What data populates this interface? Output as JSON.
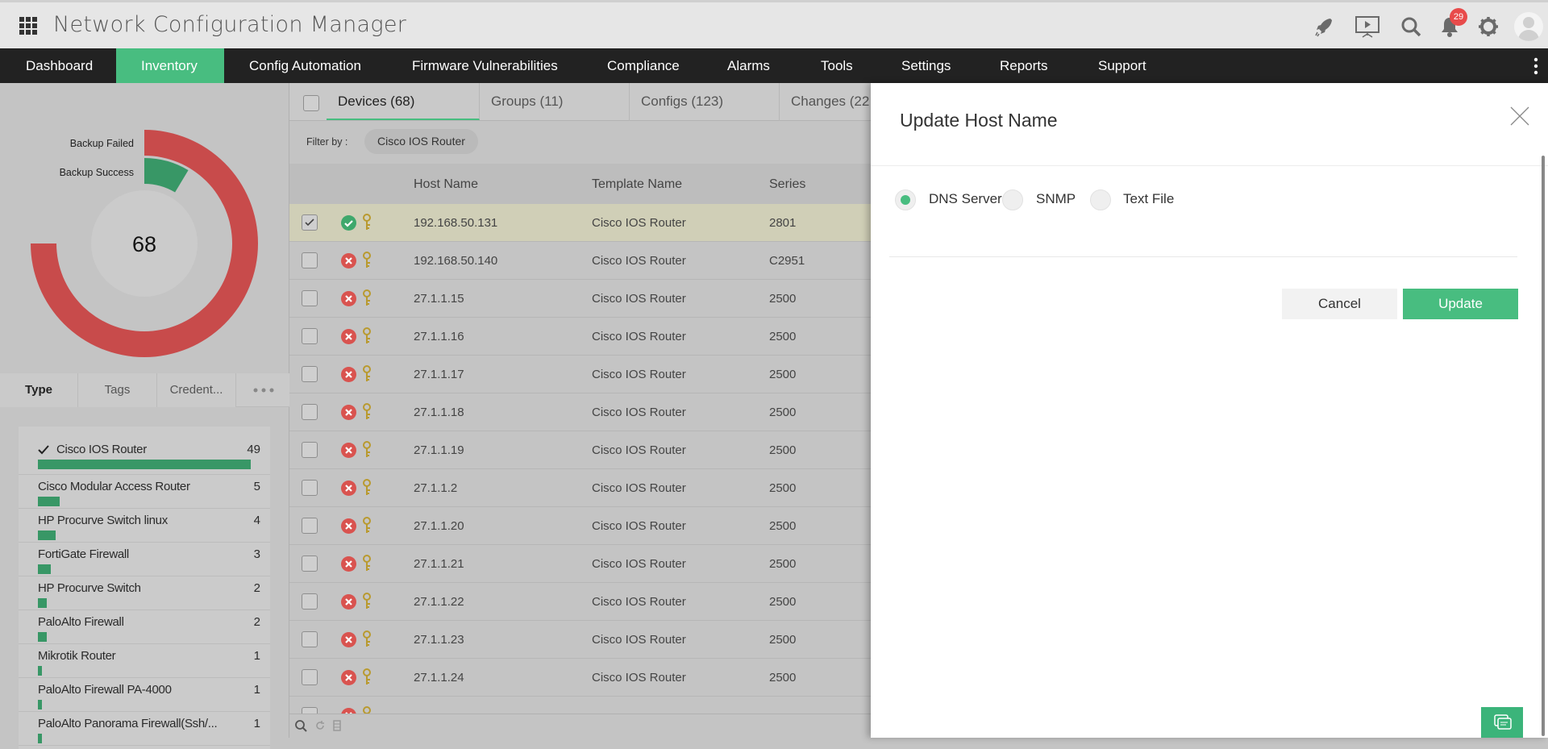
{
  "app": {
    "title": "Network Configuration Manager",
    "notification_count": "29"
  },
  "header_icons": [
    "rocket-icon",
    "presentation-icon",
    "search-icon",
    "bell-icon",
    "gear-icon",
    "avatar"
  ],
  "nav": {
    "items": [
      {
        "label": "Dashboard"
      },
      {
        "label": "Inventory",
        "active": true
      },
      {
        "label": "Config Automation"
      },
      {
        "label": "Firmware Vulnerabilities"
      },
      {
        "label": "Compliance"
      },
      {
        "label": "Alarms"
      },
      {
        "label": "Tools"
      },
      {
        "label": "Settings"
      },
      {
        "label": "Reports"
      },
      {
        "label": "Support"
      }
    ]
  },
  "chart_data": {
    "type": "radial-bar",
    "center_label": "68",
    "series": [
      {
        "name": "Backup Failed",
        "value": 61,
        "color": "#c84b4b"
      },
      {
        "name": "Backup Success",
        "value": 7,
        "color": "#389766"
      }
    ]
  },
  "left_tabs": [
    {
      "label": "Type"
    },
    {
      "label": "Tags"
    },
    {
      "label": "Credent..."
    }
  ],
  "types": [
    {
      "name": "Cisco IOS Router",
      "count": "49",
      "selected": true
    },
    {
      "name": "Cisco Modular Access Router",
      "count": "5"
    },
    {
      "name": "HP Procurve Switch linux",
      "count": "4"
    },
    {
      "name": "FortiGate Firewall",
      "count": "3"
    },
    {
      "name": "HP Procurve Switch",
      "count": "2"
    },
    {
      "name": "PaloAlto Firewall",
      "count": "2"
    },
    {
      "name": "Mikrotik Router",
      "count": "1"
    },
    {
      "name": "PaloAlto Firewall PA-4000",
      "count": "1"
    },
    {
      "name": "PaloAlto Panorama Firewall(Ssh/...",
      "count": "1"
    }
  ],
  "main_tabs": [
    {
      "label": "Devices (68)",
      "active": true
    },
    {
      "label": "Groups (11)"
    },
    {
      "label": "Configs (123)"
    },
    {
      "label": "Changes (22"
    }
  ],
  "filter": {
    "label": "Filter by :",
    "chip": "Cisco IOS Router"
  },
  "table": {
    "columns": [
      "Host Name",
      "Template Name",
      "Series"
    ],
    "rows": [
      {
        "host": "192.168.50.131",
        "template": "Cisco IOS Router",
        "series": "2801",
        "status": "success",
        "checked": true
      },
      {
        "host": "192.168.50.140",
        "template": "Cisco IOS Router",
        "series": "C2951",
        "status": "failed"
      },
      {
        "host": "27.1.1.15",
        "template": "Cisco IOS Router",
        "series": "2500",
        "status": "failed"
      },
      {
        "host": "27.1.1.16",
        "template": "Cisco IOS Router",
        "series": "2500",
        "status": "failed"
      },
      {
        "host": "27.1.1.17",
        "template": "Cisco IOS Router",
        "series": "2500",
        "status": "failed"
      },
      {
        "host": "27.1.1.18",
        "template": "Cisco IOS Router",
        "series": "2500",
        "status": "failed"
      },
      {
        "host": "27.1.1.19",
        "template": "Cisco IOS Router",
        "series": "2500",
        "status": "failed"
      },
      {
        "host": "27.1.1.2",
        "template": "Cisco IOS Router",
        "series": "2500",
        "status": "failed"
      },
      {
        "host": "27.1.1.20",
        "template": "Cisco IOS Router",
        "series": "2500",
        "status": "failed"
      },
      {
        "host": "27.1.1.21",
        "template": "Cisco IOS Router",
        "series": "2500",
        "status": "failed"
      },
      {
        "host": "27.1.1.22",
        "template": "Cisco IOS Router",
        "series": "2500",
        "status": "failed"
      },
      {
        "host": "27.1.1.23",
        "template": "Cisco IOS Router",
        "series": "2500",
        "status": "failed"
      },
      {
        "host": "27.1.1.24",
        "template": "Cisco IOS Router",
        "series": "2500",
        "status": "failed"
      }
    ]
  },
  "modal": {
    "title": "Update Host Name",
    "options": [
      {
        "label": "DNS Server",
        "selected": true
      },
      {
        "label": "SNMP"
      },
      {
        "label": "Text File"
      }
    ],
    "cancel": "Cancel",
    "update": "Update"
  },
  "colors": {
    "accent": "#48bd80",
    "failed": "#c84b4b",
    "success": "#389766",
    "nav_bg": "#222222"
  }
}
